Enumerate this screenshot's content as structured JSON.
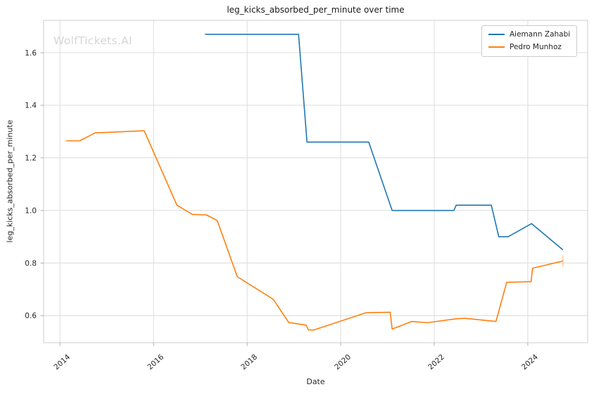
{
  "title": "leg_kicks_absorbed_per_minute over time",
  "watermark": "WolfTickets.AI",
  "axes": {
    "x_label": "Date",
    "y_label": "leg_kicks_absorbed_per_minute",
    "x_ticks": [
      2014,
      2016,
      2018,
      2020,
      2022,
      2024
    ],
    "y_ticks": [
      0.6,
      0.8,
      1.0,
      1.2,
      1.4,
      1.6
    ]
  },
  "colors": {
    "blue": "#1f77b4",
    "orange": "#ff7f0e",
    "grid": "#dcdcdc",
    "spine": "#cccccc",
    "tick": "#b0b0b0",
    "text": "#262626",
    "watermark": "#d6d6d6"
  },
  "chart_data": {
    "type": "line",
    "title": "leg_kicks_absorbed_per_minute over time",
    "xlabel": "Date",
    "ylabel": "leg_kicks_absorbed_per_minute",
    "x_range": [
      2013.65,
      2025.28
    ],
    "y_range": [
      0.497,
      1.723
    ],
    "grid": true,
    "legend_position": "upper right",
    "series": [
      {
        "name": "Aiemann Zahabi",
        "color": "#1f77b4",
        "end_marker": false,
        "points": [
          [
            2017.1,
            1.67
          ],
          [
            2019.1,
            1.67
          ],
          [
            2019.28,
            1.26
          ],
          [
            2020.6,
            1.26
          ],
          [
            2021.1,
            1.0
          ],
          [
            2022.42,
            1.0
          ],
          [
            2022.47,
            1.02
          ],
          [
            2023.22,
            1.02
          ],
          [
            2023.38,
            0.9
          ],
          [
            2023.58,
            0.9
          ],
          [
            2024.08,
            0.95
          ],
          [
            2024.75,
            0.85
          ]
        ]
      },
      {
        "name": "Pedro Munhoz",
        "color": "#ff7f0e",
        "end_marker": true,
        "points": [
          [
            2014.13,
            1.265
          ],
          [
            2014.42,
            1.265
          ],
          [
            2014.75,
            1.295
          ],
          [
            2015.8,
            1.303
          ],
          [
            2016.5,
            1.02
          ],
          [
            2016.83,
            0.985
          ],
          [
            2017.13,
            0.983
          ],
          [
            2017.36,
            0.962
          ],
          [
            2017.79,
            0.748
          ],
          [
            2018.56,
            0.662
          ],
          [
            2018.89,
            0.574
          ],
          [
            2019.26,
            0.564
          ],
          [
            2019.31,
            0.546
          ],
          [
            2019.42,
            0.545
          ],
          [
            2020.54,
            0.611
          ],
          [
            2021.06,
            0.613
          ],
          [
            2021.1,
            0.549
          ],
          [
            2021.52,
            0.578
          ],
          [
            2021.85,
            0.573
          ],
          [
            2022.47,
            0.588
          ],
          [
            2022.65,
            0.59
          ],
          [
            2023.32,
            0.578
          ],
          [
            2023.55,
            0.727
          ],
          [
            2024.07,
            0.729
          ],
          [
            2024.1,
            0.78
          ],
          [
            2024.75,
            0.808
          ]
        ]
      }
    ]
  }
}
